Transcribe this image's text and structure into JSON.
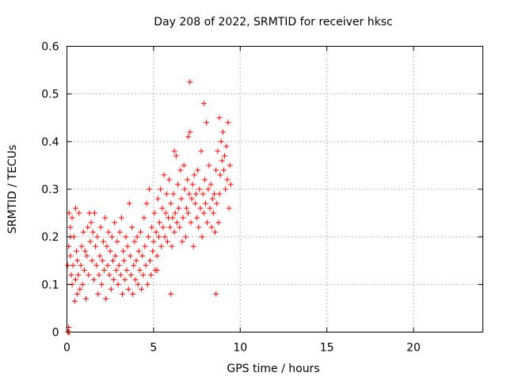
{
  "chart_data": {
    "type": "scatter",
    "title": "Day 208 of 2022, SRMTID for receiver hksc",
    "xlabel": "GPS time / hours",
    "ylabel": "SRMTID / TECUs",
    "xlim": [
      0,
      24
    ],
    "ylim": [
      0,
      0.6
    ],
    "xticks": [
      0,
      5,
      10,
      15,
      20
    ],
    "xtick_labels": [
      "0",
      "5",
      "10",
      "15",
      "20"
    ],
    "yticks": [
      0,
      0.1,
      0.2,
      0.3,
      0.4,
      0.5,
      0.6
    ],
    "ytick_labels": [
      "0",
      "0.1",
      "0.2",
      "0.3",
      "0.4",
      "0.5",
      "0.6"
    ],
    "grid": true,
    "legend": "none",
    "marker": "+",
    "color": "#ff0000",
    "series": [
      {
        "name": "SRMTID",
        "points": [
          [
            0.05,
            0.0
          ],
          [
            0.1,
            0.0
          ],
          [
            0.15,
            0.0
          ],
          [
            0.1,
            0.01
          ],
          [
            0.05,
            0.14
          ],
          [
            0.1,
            0.18
          ],
          [
            0.12,
            0.25
          ],
          [
            0.2,
            0.22
          ],
          [
            0.2,
            0.16
          ],
          [
            0.25,
            0.12
          ],
          [
            0.3,
            0.24
          ],
          [
            0.3,
            0.1
          ],
          [
            0.35,
            0.14
          ],
          [
            0.4,
            0.2
          ],
          [
            0.45,
            0.065
          ],
          [
            0.5,
            0.11
          ],
          [
            0.55,
            0.17
          ],
          [
            0.6,
            0.15
          ],
          [
            0.6,
            0.08
          ],
          [
            0.65,
            0.12
          ],
          [
            0.7,
            0.25
          ],
          [
            0.75,
            0.09
          ],
          [
            0.8,
            0.14
          ],
          [
            0.85,
            0.18
          ],
          [
            0.9,
            0.1
          ],
          [
            0.95,
            0.21
          ],
          [
            1.0,
            0.13
          ],
          [
            1.05,
            0.17
          ],
          [
            1.1,
            0.07
          ],
          [
            1.15,
            0.16
          ],
          [
            1.2,
            0.22
          ],
          [
            1.25,
            0.12
          ],
          [
            1.3,
            0.25
          ],
          [
            1.35,
            0.19
          ],
          [
            1.4,
            0.23
          ],
          [
            1.45,
            0.15
          ],
          [
            1.5,
            0.21
          ],
          [
            1.55,
            0.11
          ],
          [
            1.6,
            0.25
          ],
          [
            1.65,
            0.18
          ],
          [
            1.7,
            0.14
          ],
          [
            1.75,
            0.2
          ],
          [
            1.8,
            0.08
          ],
          [
            1.85,
            0.12
          ],
          [
            1.9,
            0.16
          ],
          [
            1.95,
            0.22
          ],
          [
            2.0,
            0.1
          ],
          [
            2.05,
            0.15
          ],
          [
            2.1,
            0.19
          ],
          [
            2.15,
            0.13
          ],
          [
            2.2,
            0.24
          ],
          [
            2.25,
            0.07
          ],
          [
            2.3,
            0.18
          ],
          [
            2.35,
            0.14
          ],
          [
            2.4,
            0.21
          ],
          [
            2.45,
            0.12
          ],
          [
            2.5,
            0.17
          ],
          [
            2.55,
            0.09
          ],
          [
            2.6,
            0.2
          ],
          [
            2.65,
            0.15
          ],
          [
            2.7,
            0.11
          ],
          [
            2.75,
            0.23
          ],
          [
            2.8,
            0.16
          ],
          [
            2.85,
            0.13
          ],
          [
            2.9,
            0.19
          ],
          [
            2.95,
            0.1
          ],
          [
            3.0,
            0.14
          ],
          [
            3.05,
            0.21
          ],
          [
            3.1,
            0.12
          ],
          [
            3.15,
            0.24
          ],
          [
            3.2,
            0.08
          ],
          [
            3.25,
            0.17
          ],
          [
            3.3,
            0.15
          ],
          [
            3.35,
            0.11
          ],
          [
            3.4,
            0.2
          ],
          [
            3.45,
            0.13
          ],
          [
            3.5,
            0.18
          ],
          [
            3.55,
            0.09
          ],
          [
            3.6,
            0.27
          ],
          [
            3.65,
            0.16
          ],
          [
            3.7,
            0.12
          ],
          [
            3.75,
            0.22
          ],
          [
            3.8,
            0.08
          ],
          [
            3.85,
            0.14
          ],
          [
            3.9,
            0.19
          ],
          [
            3.95,
            0.11
          ],
          [
            4.0,
            0.15
          ],
          [
            4.05,
            0.2
          ],
          [
            4.1,
            0.1
          ],
          [
            4.15,
            0.17
          ],
          [
            4.2,
            0.13
          ],
          [
            4.25,
            0.21
          ],
          [
            4.3,
            0.09
          ],
          [
            4.35,
            0.16
          ],
          [
            4.4,
            0.12
          ],
          [
            4.45,
            0.24
          ],
          [
            4.5,
            0.18
          ],
          [
            4.55,
            0.14
          ],
          [
            4.6,
            0.27
          ],
          [
            4.65,
            0.1
          ],
          [
            4.7,
            0.2
          ],
          [
            4.75,
            0.3
          ],
          [
            4.8,
            0.15
          ],
          [
            4.85,
            0.12
          ],
          [
            4.9,
            0.22
          ],
          [
            4.95,
            0.17
          ],
          [
            5.0,
            0.19
          ],
          [
            5.05,
            0.25
          ],
          [
            5.1,
            0.13
          ],
          [
            5.15,
            0.21
          ],
          [
            5.2,
            0.16
          ],
          [
            5.25,
            0.28
          ],
          [
            5.3,
            0.2
          ],
          [
            5.35,
            0.23
          ],
          [
            5.4,
            0.3
          ],
          [
            5.45,
            0.18
          ],
          [
            5.5,
            0.26
          ],
          [
            5.55,
            0.22
          ],
          [
            5.6,
            0.33
          ],
          [
            5.65,
            0.2
          ],
          [
            5.7,
            0.25
          ],
          [
            5.75,
            0.29
          ],
          [
            5.8,
            0.19
          ],
          [
            5.85,
            0.24
          ],
          [
            5.9,
            0.32
          ],
          [
            5.95,
            0.22
          ],
          [
            6.0,
            0.27
          ],
          [
            6.05,
            0.18
          ],
          [
            6.1,
            0.24
          ],
          [
            6.15,
            0.29
          ],
          [
            6.2,
            0.21
          ],
          [
            6.25,
            0.25
          ],
          [
            6.3,
            0.37
          ],
          [
            6.35,
            0.23
          ],
          [
            6.4,
            0.31
          ],
          [
            6.45,
            0.26
          ],
          [
            6.5,
            0.22
          ],
          [
            6.55,
            0.34
          ],
          [
            6.6,
            0.28
          ],
          [
            6.65,
            0.19
          ],
          [
            6.7,
            0.24
          ],
          [
            6.75,
            0.35
          ],
          [
            6.8,
            0.3
          ],
          [
            6.85,
            0.2
          ],
          [
            6.9,
            0.26
          ],
          [
            6.95,
            0.32
          ],
          [
            7.0,
            0.25
          ],
          [
            7.05,
            0.29
          ],
          [
            7.1,
            0.42
          ],
          [
            7.15,
            0.23
          ],
          [
            7.2,
            0.28
          ],
          [
            7.25,
            0.31
          ],
          [
            7.3,
            0.18
          ],
          [
            7.35,
            0.33
          ],
          [
            7.4,
            0.27
          ],
          [
            7.45,
            0.29
          ],
          [
            7.5,
            0.24
          ],
          [
            7.55,
            0.34
          ],
          [
            7.6,
            0.22
          ],
          [
            7.65,
            0.3
          ],
          [
            7.7,
            0.26
          ],
          [
            7.75,
            0.38
          ],
          [
            7.8,
            0.2
          ],
          [
            7.85,
            0.29
          ],
          [
            7.9,
            0.25
          ],
          [
            7.95,
            0.32
          ],
          [
            8.0,
            0.27
          ],
          [
            8.05,
            0.44
          ],
          [
            8.1,
            0.23
          ],
          [
            8.15,
            0.3
          ],
          [
            8.2,
            0.35
          ],
          [
            8.25,
            0.26
          ],
          [
            8.3,
            0.31
          ],
          [
            8.35,
            0.22
          ],
          [
            8.4,
            0.28
          ],
          [
            8.45,
            0.25
          ],
          [
            8.5,
            0.29
          ],
          [
            8.55,
            0.21
          ],
          [
            8.6,
            0.34
          ],
          [
            8.65,
            0.27
          ],
          [
            8.7,
            0.38
          ],
          [
            8.75,
            0.23
          ],
          [
            8.8,
            0.29
          ],
          [
            8.85,
            0.33
          ],
          [
            8.9,
            0.4
          ],
          [
            8.95,
            0.36
          ],
          [
            9.0,
            0.42
          ],
          [
            9.05,
            0.34
          ],
          [
            9.1,
            0.37
          ],
          [
            9.15,
            0.3
          ],
          [
            9.2,
            0.39
          ],
          [
            9.25,
            0.32
          ],
          [
            9.3,
            0.44
          ],
          [
            9.35,
            0.26
          ],
          [
            9.4,
            0.35
          ],
          [
            9.45,
            0.31
          ],
          [
            7.1,
            0.525
          ],
          [
            7.9,
            0.48
          ],
          [
            8.8,
            0.45
          ],
          [
            7.0,
            0.41
          ],
          [
            6.2,
            0.38
          ],
          [
            8.6,
            0.08
          ],
          [
            6.0,
            0.08
          ],
          [
            5.2,
            0.13
          ],
          [
            0.2,
            0.2
          ],
          [
            0.5,
            0.26
          ]
        ]
      }
    ]
  }
}
